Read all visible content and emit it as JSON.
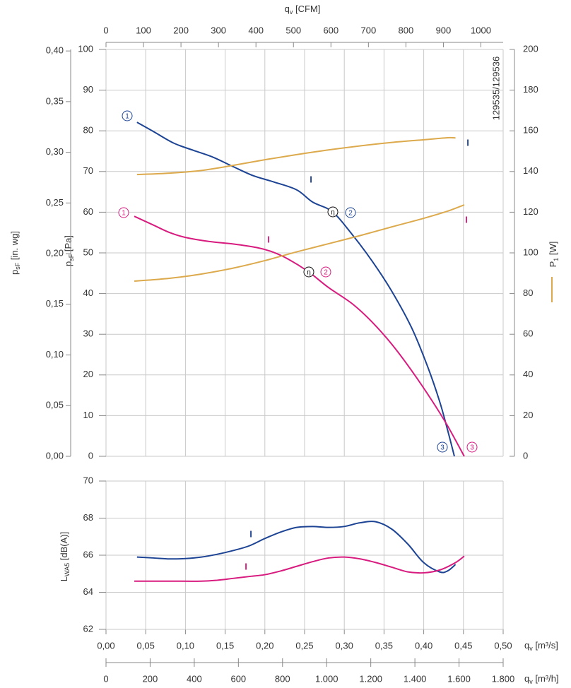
{
  "chart_data": [
    {
      "type": "line",
      "x_title": {
        "main": "q",
        "sub": "v",
        "unit": " [CFM]"
      },
      "y_title": {
        "main": "p",
        "sub": "sF",
        "unit": " [Pa]"
      },
      "y_title_inwg": {
        "main": "p",
        "sub": "sF",
        "unit": " [in. wg]"
      },
      "y2_title": {
        "main": "P",
        "sub": "1",
        "unit": " [W]"
      },
      "side_note": "129535/129536",
      "point_labels": [
        "1",
        "2",
        "3"
      ],
      "efficiency_label": "η",
      "curve_label": "I",
      "xlim_cfm": [
        0,
        1059.4
      ],
      "xticks_cfm": [
        0,
        100,
        200,
        300,
        400,
        500,
        600,
        700,
        800,
        900,
        1000
      ],
      "ylim": [
        0,
        100
      ],
      "yticks": [
        0,
        10,
        20,
        30,
        40,
        50,
        60,
        70,
        80,
        90,
        100
      ],
      "ylim_inwg": [
        0,
        0.4015
      ],
      "yticks_inwg": [
        {
          "value": 0,
          "label": "0,00"
        },
        {
          "value": 0.05,
          "label": "0,05"
        },
        {
          "value": 0.1,
          "label": "0,10"
        },
        {
          "value": 0.15,
          "label": "0,15"
        },
        {
          "value": 0.2,
          "label": "0,20"
        },
        {
          "value": 0.25,
          "label": "0,25"
        },
        {
          "value": 0.3,
          "label": "0,30"
        },
        {
          "value": 0.35,
          "label": "0,35"
        },
        {
          "value": 0.4,
          "label": "0,40"
        }
      ],
      "y2lim": [
        0,
        200
      ],
      "y2ticks": [
        0,
        20,
        40,
        60,
        80,
        100,
        120,
        140,
        160,
        180,
        200
      ],
      "grid": true,
      "series": [
        {
          "color": "#1d4494",
          "x": [
            0.039,
            0.06,
            0.085,
            0.11,
            0.135,
            0.16,
            0.185,
            0.21,
            0.24,
            0.26,
            0.285,
            0.31,
            0.335,
            0.36,
            0.385,
            0.405,
            0.42,
            0.43,
            0.4386
          ],
          "values": [
            82.1,
            79.8,
            77.0,
            75.2,
            73.5,
            71.2,
            69.0,
            67.5,
            65.5,
            62.5,
            60.1,
            54.5,
            48.0,
            40.5,
            31.5,
            22.0,
            13.5,
            6.5,
            0
          ]
        },
        {
          "color": "#d81b7f",
          "x": [
            0.0356,
            0.06,
            0.08,
            0.1,
            0.13,
            0.16,
            0.19,
            0.21,
            0.23,
            0.2553,
            0.28,
            0.31,
            0.335,
            0.36,
            0.385,
            0.41,
            0.43,
            0.451
          ],
          "values": [
            59.0,
            56.8,
            55.0,
            53.8,
            52.8,
            52.2,
            51.3,
            50.2,
            48.4,
            45.3,
            41.5,
            37.5,
            33.0,
            27.5,
            21.0,
            13.8,
            7.5,
            0
          ]
        },
        {
          "color": "#dcaa4c",
          "axis": "y2",
          "x": [
            0.039,
            0.08,
            0.12,
            0.16,
            0.2,
            0.24,
            0.28,
            0.32,
            0.36,
            0.4,
            0.43,
            0.44
          ],
          "values": [
            138.5,
            139.2,
            140.5,
            143,
            145.8,
            148.3,
            150.6,
            152.6,
            154.3,
            155.6,
            156.6,
            156.5
          ]
        },
        {
          "color": "#dcaa4c",
          "axis": "y2",
          "x": [
            0.0356,
            0.08,
            0.12,
            0.16,
            0.2,
            0.24,
            0.28,
            0.32,
            0.36,
            0.4,
            0.43,
            0.451
          ],
          "values": [
            86.1,
            87.5,
            89.6,
            92.5,
            96.2,
            100.5,
            104.5,
            108.5,
            112.8,
            117.0,
            120.5,
            123.6
          ]
        }
      ]
    },
    {
      "type": "line",
      "y_title": {
        "main": "L",
        "sub": "WA5",
        "unit": " [dB(A)]"
      },
      "x_title": {
        "main": "q",
        "sub": "v",
        "unit": " [m³/s]"
      },
      "x_title_m3h": {
        "main": "q",
        "sub": "v",
        "unit": " [m³/h]"
      },
      "curve_label": "I",
      "xlim": [
        0,
        0.5
      ],
      "xticks": [
        {
          "value": 0,
          "label": "0,00"
        },
        {
          "value": 0.05,
          "label": "0,05"
        },
        {
          "value": 0.1,
          "label": "0,10"
        },
        {
          "value": 0.15,
          "label": "0,15"
        },
        {
          "value": 0.2,
          "label": "0,20"
        },
        {
          "value": 0.25,
          "label": "0,25"
        },
        {
          "value": 0.3,
          "label": "0,30"
        },
        {
          "value": 0.35,
          "label": "0,35"
        },
        {
          "value": 0.4,
          "label": "0,40"
        },
        {
          "value": 0.45,
          "label": "0,45"
        },
        {
          "value": 0.5,
          "label": "0,50"
        }
      ],
      "xlim_m3h": [
        0,
        1800
      ],
      "xticks_m3h": [
        0,
        200,
        400,
        600,
        800,
        {
          "value": 1000,
          "label": "1.000"
        },
        {
          "value": 1200,
          "label": "1.200"
        },
        {
          "value": 1400,
          "label": "1.400"
        },
        {
          "value": 1600,
          "label": "1.600"
        },
        {
          "value": 1800,
          "label": "1.800"
        }
      ],
      "ylim": [
        62,
        70
      ],
      "yticks": [
        62,
        64,
        66,
        68,
        70
      ],
      "grid": true,
      "series": [
        {
          "color": "#1d4494",
          "x": [
            0.039,
            0.06,
            0.08,
            0.1,
            0.12,
            0.14,
            0.16,
            0.18,
            0.2,
            0.22,
            0.24,
            0.26,
            0.28,
            0.3,
            0.32,
            0.34,
            0.36,
            0.38,
            0.4,
            0.42,
            0.43,
            0.44
          ],
          "values": [
            65.9,
            65.85,
            65.8,
            65.82,
            65.9,
            66.05,
            66.25,
            66.5,
            66.9,
            67.25,
            67.5,
            67.55,
            67.5,
            67.55,
            67.75,
            67.8,
            67.4,
            66.6,
            65.6,
            65.1,
            65.15,
            65.5
          ]
        },
        {
          "color": "#d81b7f",
          "x": [
            0.0356,
            0.08,
            0.12,
            0.14,
            0.16,
            0.18,
            0.2,
            0.22,
            0.24,
            0.26,
            0.28,
            0.3,
            0.32,
            0.34,
            0.36,
            0.38,
            0.4,
            0.42,
            0.44,
            0.451
          ],
          "values": [
            64.6,
            64.6,
            64.6,
            64.65,
            64.75,
            64.85,
            64.95,
            65.15,
            65.4,
            65.65,
            65.85,
            65.9,
            65.8,
            65.6,
            65.35,
            65.1,
            65.05,
            65.2,
            65.6,
            65.95
          ]
        }
      ]
    }
  ]
}
